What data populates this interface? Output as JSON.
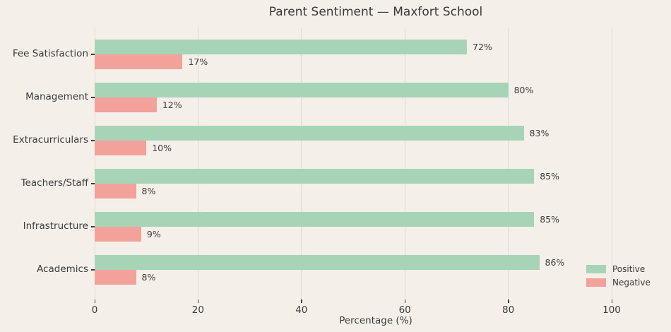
{
  "title": "Parent Sentiment — Maxfort School",
  "chart_data": {
    "type": "bar",
    "orientation": "horizontal",
    "title": "Parent Sentiment — Maxfort School",
    "categories": [
      "Fee Satisfaction",
      "Management",
      "Extracurriculars",
      "Teachers/Staff",
      "Infrastructure",
      "Academics"
    ],
    "series": [
      {
        "name": "Positive",
        "color": "#a7d4b6",
        "values": [
          72,
          80,
          83,
          85,
          85,
          86
        ]
      },
      {
        "name": "Negative",
        "color": "#f3a29b",
        "values": [
          17,
          12,
          10,
          8,
          9,
          8
        ]
      }
    ],
    "value_label_suffix": "%",
    "xlabel": "Percentage (%)",
    "x_ticks": [
      0,
      20,
      40,
      60,
      80,
      100
    ],
    "xlim": [
      0,
      108.7
    ],
    "grid": "vertical-gridlines-only",
    "legend": {
      "position": "lower-right",
      "entries": [
        "Positive",
        "Negative"
      ]
    },
    "background_color": "#f4efe9",
    "gridline_color": "#dedad5",
    "text_color": "#3c3c3c"
  }
}
